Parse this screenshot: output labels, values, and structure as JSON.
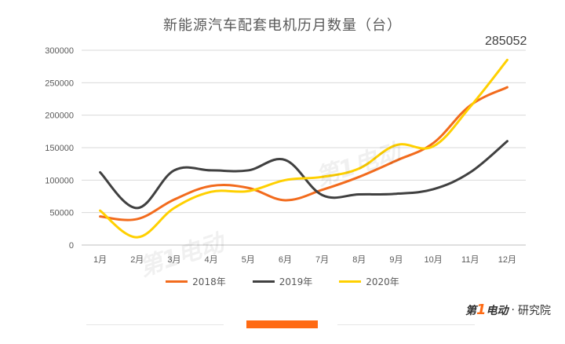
{
  "chart_data": {
    "type": "line",
    "title": "新能源汽车配套电机历月数量（台）",
    "categories": [
      "1月",
      "2月",
      "3月",
      "4月",
      "5月",
      "6月",
      "7月",
      "8月",
      "9月",
      "10月",
      "11月",
      "12月"
    ],
    "ylim": [
      0,
      300000
    ],
    "yticks": [
      "0",
      "50000",
      "100000",
      "150000",
      "200000",
      "250000",
      "300000"
    ],
    "ytick_values": [
      0,
      50000,
      100000,
      150000,
      200000,
      250000,
      300000
    ],
    "grid": true,
    "legend_position": "bottom",
    "series": [
      {
        "name": "2018年",
        "color": "#f26b1d",
        "values": [
          44000,
          40000,
          70000,
          91000,
          88000,
          69000,
          85000,
          105000,
          130000,
          157000,
          215000,
          243000
        ]
      },
      {
        "name": "2019年",
        "color": "#404040",
        "values": [
          112000,
          57000,
          115000,
          115000,
          115000,
          131000,
          77000,
          78000,
          79000,
          86000,
          112000,
          160000
        ]
      },
      {
        "name": "2020年",
        "color": "#ffd000",
        "values": [
          53000,
          12000,
          57000,
          82000,
          83000,
          100000,
          105000,
          118000,
          154000,
          152000,
          213000,
          285052
        ]
      }
    ],
    "annotations": [
      {
        "text": "285052",
        "series": "2020年",
        "category": "12月"
      }
    ]
  },
  "colors": {
    "accent_bar": "#ff6a13",
    "grid": "#d9d9d9",
    "axis_text": "#595959"
  },
  "brand": {
    "logo_prefix": "第",
    "logo_one": "1",
    "logo_suffix": "电动",
    "logo_separator": "·",
    "logo_tail": "研究院"
  }
}
